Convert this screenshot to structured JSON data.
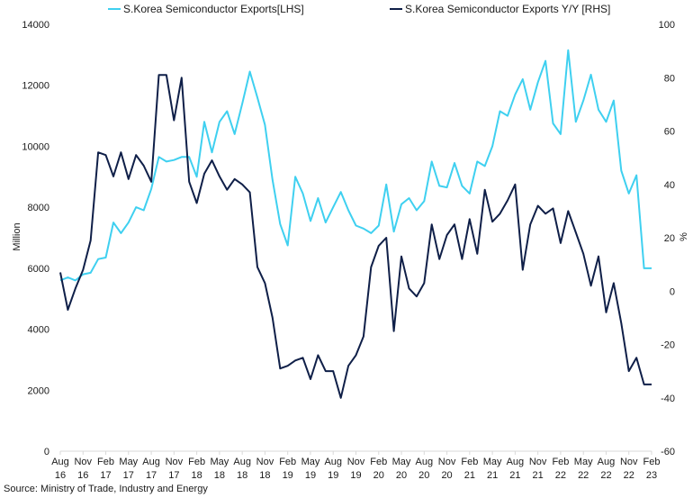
{
  "source_note": "Source: Ministry of Trade, Industry and Energy",
  "chart_data": {
    "type": "line",
    "title": "",
    "xlabel": "",
    "ylabel_left": "Million",
    "ylabel_right": "%",
    "ylim_left": [
      0,
      14000
    ],
    "ylim_right": [
      -60,
      100
    ],
    "yticks_left": [
      "0",
      "2000",
      "4000",
      "6000",
      "8000",
      "10000",
      "12000",
      "14000"
    ],
    "yticks_right": [
      "-60",
      "-40",
      "-20",
      "0",
      "20",
      "40",
      "60",
      "80",
      "100"
    ],
    "x_tick_labels": [
      [
        "Aug",
        "16"
      ],
      [
        "Nov",
        "16"
      ],
      [
        "Feb",
        "17"
      ],
      [
        "May",
        "17"
      ],
      [
        "Aug",
        "17"
      ],
      [
        "Nov",
        "17"
      ],
      [
        "Feb",
        "18"
      ],
      [
        "May",
        "18"
      ],
      [
        "Aug",
        "18"
      ],
      [
        "Nov",
        "18"
      ],
      [
        "Feb",
        "19"
      ],
      [
        "May",
        "19"
      ],
      [
        "Aug",
        "19"
      ],
      [
        "Nov",
        "19"
      ],
      [
        "Feb",
        "20"
      ],
      [
        "May",
        "20"
      ],
      [
        "Aug",
        "20"
      ],
      [
        "Nov",
        "20"
      ],
      [
        "Feb",
        "21"
      ],
      [
        "May",
        "21"
      ],
      [
        "Aug",
        "21"
      ],
      [
        "Nov",
        "21"
      ],
      [
        "Feb",
        "22"
      ],
      [
        "May",
        "22"
      ],
      [
        "Aug",
        "22"
      ],
      [
        "Nov",
        "22"
      ],
      [
        "Feb",
        "23"
      ]
    ],
    "x": [
      "2016-08",
      "2016-09",
      "2016-10",
      "2016-11",
      "2016-12",
      "2017-01",
      "2017-02",
      "2017-03",
      "2017-04",
      "2017-05",
      "2017-06",
      "2017-07",
      "2017-08",
      "2017-09",
      "2017-10",
      "2017-11",
      "2017-12",
      "2018-01",
      "2018-02",
      "2018-03",
      "2018-04",
      "2018-05",
      "2018-06",
      "2018-07",
      "2018-08",
      "2018-09",
      "2018-10",
      "2018-11",
      "2018-12",
      "2019-01",
      "2019-02",
      "2019-03",
      "2019-04",
      "2019-05",
      "2019-06",
      "2019-07",
      "2019-08",
      "2019-09",
      "2019-10",
      "2019-11",
      "2019-12",
      "2020-01",
      "2020-02",
      "2020-03",
      "2020-04",
      "2020-05",
      "2020-06",
      "2020-07",
      "2020-08",
      "2020-09",
      "2020-10",
      "2020-11",
      "2020-12",
      "2021-01",
      "2021-02",
      "2021-03",
      "2021-04",
      "2021-05",
      "2021-06",
      "2021-07",
      "2021-08",
      "2021-09",
      "2021-10",
      "2021-11",
      "2021-12",
      "2022-01",
      "2022-02",
      "2022-03",
      "2022-04",
      "2022-05",
      "2022-06",
      "2022-07",
      "2022-08",
      "2022-09",
      "2022-10",
      "2022-11",
      "2022-12",
      "2023-01",
      "2023-02"
    ],
    "legend_position": "top",
    "grid": false,
    "series": [
      {
        "name": "S.Korea Semiconductor Exports[LHS]",
        "axis": "left",
        "color": "#3fd0f0",
        "values": [
          5600,
          5700,
          5600,
          5800,
          5850,
          6300,
          6350,
          7500,
          7150,
          7500,
          8000,
          7900,
          8600,
          9650,
          9500,
          9550,
          9650,
          9650,
          9000,
          10800,
          9800,
          10800,
          11150,
          10400,
          11400,
          12450,
          11600,
          10700,
          8900,
          7450,
          6750,
          9000,
          8450,
          7550,
          8300,
          7500,
          8000,
          8500,
          7900,
          7400,
          7300,
          7150,
          7400,
          8750,
          7200,
          8100,
          8300,
          7900,
          8200,
          9500,
          8700,
          8650,
          9450,
          8700,
          8450,
          9500,
          9350,
          10000,
          11150,
          11000,
          11700,
          12200,
          11200,
          12100,
          12800,
          10750,
          10400,
          13150,
          10800,
          11500,
          12350,
          11200,
          10800,
          11500,
          9200,
          8450,
          9050,
          6000,
          6000
        ]
      },
      {
        "name": "S.Korea Semiconductor Exports Y/Y [RHS]",
        "axis": "right",
        "color": "#0f1f48",
        "values": [
          7,
          -7,
          1,
          8,
          19,
          52,
          51,
          43,
          52,
          42,
          51,
          47,
          41,
          81,
          81,
          64,
          80,
          41,
          33,
          44,
          49,
          43,
          38,
          42,
          40,
          37,
          9,
          3,
          -10,
          -29,
          -28,
          -26,
          -25,
          -33,
          -24,
          -30,
          -30,
          -40,
          -28,
          -24,
          -17,
          9,
          17,
          20,
          -15,
          13,
          1,
          -2,
          3,
          25,
          12,
          21,
          25,
          12,
          27,
          14,
          38,
          26,
          29,
          34,
          40,
          8,
          25,
          32,
          29,
          31,
          18,
          30,
          22,
          14,
          2,
          13,
          -8,
          3,
          -12,
          -30,
          -25,
          -35,
          -35
        ]
      }
    ]
  }
}
